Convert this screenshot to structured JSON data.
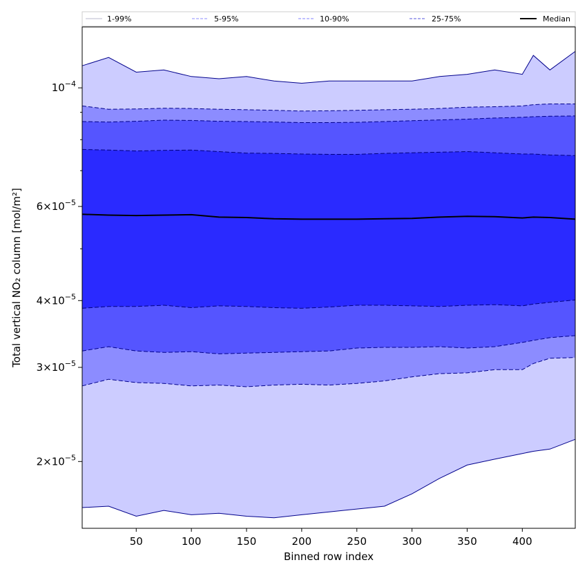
{
  "chart_data": {
    "type": "area",
    "title": "",
    "xlabel": "Binned row index",
    "ylabel": "Total vertical NO₂ column [mol/m²]",
    "yscale": "log",
    "xlim": [
      1,
      448
    ],
    "ylim": [
      1.5e-05,
      0.00013
    ],
    "x_ticks": [
      50,
      100,
      150,
      200,
      250,
      300,
      350,
      400
    ],
    "y_ticks": [
      {
        "value": 2e-05,
        "mantissa": "2",
        "exponent": "−5"
      },
      {
        "value": 3e-05,
        "mantissa": "3",
        "exponent": "−5"
      },
      {
        "value": 4e-05,
        "mantissa": "4",
        "exponent": "−5"
      },
      {
        "value": 6e-05,
        "mantissa": "6",
        "exponent": "−5"
      },
      {
        "value": 0.0001,
        "mantissa": "",
        "exponent": "−4"
      }
    ],
    "grid": false,
    "legend_placement": "top (above plot, single row)",
    "x": [
      1,
      25,
      50,
      75,
      100,
      125,
      150,
      175,
      200,
      225,
      250,
      275,
      300,
      325,
      350,
      375,
      400,
      410,
      425,
      448
    ],
    "bands": [
      {
        "name": "1-99%",
        "color": "#ccccff",
        "edge_color": "#00008b",
        "linestyle": "solid",
        "lower": [
          1.64e-05,
          1.65e-05,
          1.58e-05,
          1.62e-05,
          1.59e-05,
          1.6e-05,
          1.58e-05,
          1.57e-05,
          1.59e-05,
          1.61e-05,
          1.63e-05,
          1.65e-05,
          1.74e-05,
          1.86e-05,
          1.97e-05,
          2.02e-05,
          2.07e-05,
          2.09e-05,
          2.11e-05,
          2.2e-05
        ],
        "upper": [
          0.00011,
          0.000114,
          0.000107,
          0.000108,
          0.000105,
          0.000104,
          0.000105,
          0.000103,
          0.000102,
          0.000103,
          0.000103,
          0.000103,
          0.000103,
          0.000105,
          0.000106,
          0.000108,
          0.000106,
          0.000115,
          0.000108,
          0.000117
        ]
      },
      {
        "name": "5-95%",
        "color": "#8c8cff",
        "edge_color": "#00008b",
        "linestyle": "dashed",
        "lower": [
          2.77e-05,
          2.85e-05,
          2.81e-05,
          2.8e-05,
          2.77e-05,
          2.78e-05,
          2.76e-05,
          2.78e-05,
          2.79e-05,
          2.78e-05,
          2.8e-05,
          2.83e-05,
          2.88e-05,
          2.92e-05,
          2.93e-05,
          2.97e-05,
          2.97e-05,
          3.05e-05,
          3.12e-05,
          3.13e-05
        ],
        "upper": [
          9.25e-05,
          9.12e-05,
          9.13e-05,
          9.16e-05,
          9.15e-05,
          9.12e-05,
          9.1e-05,
          9.08e-05,
          9.05e-05,
          9.06e-05,
          9.08e-05,
          9.1e-05,
          9.12e-05,
          9.15e-05,
          9.2e-05,
          9.22e-05,
          9.25e-05,
          9.3e-05,
          9.33e-05,
          9.33e-05
        ]
      },
      {
        "name": "10-90%",
        "color": "#5555ff",
        "edge_color": "#00008b",
        "linestyle": "dashed",
        "lower": [
          3.22e-05,
          3.28e-05,
          3.22e-05,
          3.2e-05,
          3.21e-05,
          3.18e-05,
          3.19e-05,
          3.2e-05,
          3.21e-05,
          3.22e-05,
          3.26e-05,
          3.27e-05,
          3.27e-05,
          3.28e-05,
          3.26e-05,
          3.28e-05,
          3.34e-05,
          3.37e-05,
          3.41e-05,
          3.44e-05
        ],
        "upper": [
          8.65e-05,
          8.63e-05,
          8.66e-05,
          8.7e-05,
          8.69e-05,
          8.66e-05,
          8.65e-05,
          8.63e-05,
          8.61e-05,
          8.61e-05,
          8.62e-05,
          8.65e-05,
          8.68e-05,
          8.71e-05,
          8.74e-05,
          8.78e-05,
          8.81e-05,
          8.83e-05,
          8.85e-05,
          8.86e-05
        ]
      },
      {
        "name": "25-75%",
        "color": "#2a2aff",
        "edge_color": "#000080",
        "linestyle": "dashed",
        "lower": [
          3.87e-05,
          3.9e-05,
          3.9e-05,
          3.92e-05,
          3.88e-05,
          3.91e-05,
          3.9e-05,
          3.88e-05,
          3.87e-05,
          3.89e-05,
          3.92e-05,
          3.92e-05,
          3.91e-05,
          3.9e-05,
          3.92e-05,
          3.93e-05,
          3.91e-05,
          3.94e-05,
          3.97e-05,
          4.01e-05
        ],
        "upper": [
          7.67e-05,
          7.65e-05,
          7.62e-05,
          7.64e-05,
          7.65e-05,
          7.6e-05,
          7.55e-05,
          7.54e-05,
          7.52e-05,
          7.51e-05,
          7.51e-05,
          7.54e-05,
          7.56e-05,
          7.58e-05,
          7.6e-05,
          7.56e-05,
          7.52e-05,
          7.52e-05,
          7.49e-05,
          7.47e-05
        ]
      }
    ],
    "series": [
      {
        "name": "Median",
        "color": "#000000",
        "linestyle": "solid",
        "values": [
          5.8e-05,
          5.78e-05,
          5.77e-05,
          5.78e-05,
          5.79e-05,
          5.73e-05,
          5.72e-05,
          5.69e-05,
          5.68e-05,
          5.68e-05,
          5.68e-05,
          5.69e-05,
          5.7e-05,
          5.73e-05,
          5.75e-05,
          5.74e-05,
          5.71e-05,
          5.73e-05,
          5.72e-05,
          5.68e-05
        ]
      }
    ]
  }
}
